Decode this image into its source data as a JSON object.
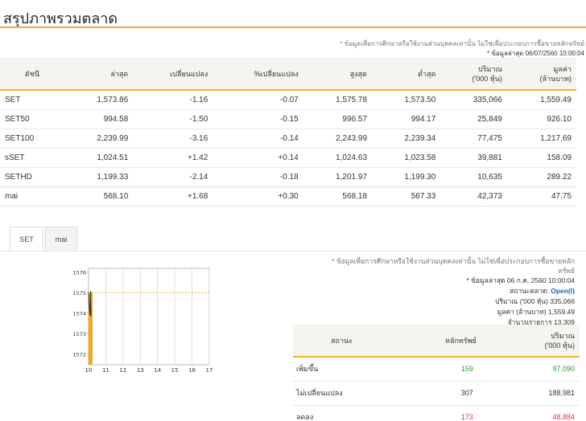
{
  "page_title": "สรุปภาพรวมตลาด",
  "top_notes": {
    "disclaimer": "* ข้อมูลเพื่อการศึกษาหรือใช้งานส่วนบุคคลเท่านั้น ไม่ใช่เพื่อประกอบการซื้อขายหลักทรัพย์",
    "updated": "* ข้อมูลล่าสุด 06/07/2560 10:00:04"
  },
  "index_table": {
    "headers": [
      "ดัชนี",
      "ล่าสุด",
      "เปลี่ยนแปลง",
      "%เปลี่ยนแปลง",
      "สูงสุด",
      "ต่ำสุด",
      "ปริมาณ\n('000 หุ้น)",
      "มูลค่า\n(ล้านบาท)"
    ],
    "rows": [
      {
        "name": "SET",
        "last": "1,573.86",
        "change": "-1.16",
        "pct": "-0.07",
        "high": "1,575.78",
        "low": "1,573.50",
        "volume": "335,066",
        "value": "1,559.49"
      },
      {
        "name": "SET50",
        "last": "994.58",
        "change": "-1.50",
        "pct": "-0.15",
        "high": "996.57",
        "low": "994.17",
        "volume": "25,849",
        "value": "926.10"
      },
      {
        "name": "SET100",
        "last": "2,239.99",
        "change": "-3.16",
        "pct": "-0.14",
        "high": "2,243.99",
        "low": "2,239.34",
        "volume": "77,475",
        "value": "1,217.69"
      },
      {
        "name": "sSET",
        "last": "1,024.51",
        "change": "+1.42",
        "pct": "+0.14",
        "high": "1,024.63",
        "low": "1,023.58",
        "volume": "39,881",
        "value": "158.09"
      },
      {
        "name": "SETHD",
        "last": "1,199.33",
        "change": "-2.14",
        "pct": "-0.18",
        "high": "1,201.97",
        "low": "1,199.30",
        "volume": "10,635",
        "value": "289.22"
      },
      {
        "name": "mai",
        "last": "568.10",
        "change": "+1.68",
        "pct": "+0.30",
        "high": "568.18",
        "low": "567.33",
        "volume": "42,373",
        "value": "47.75"
      }
    ]
  },
  "tabs": [
    {
      "label": "SET",
      "active": true
    },
    {
      "label": "mai",
      "active": false
    }
  ],
  "chart_data": {
    "type": "line",
    "x_ticks": [
      "10",
      "11",
      "12",
      "13",
      "14",
      "15",
      "16",
      "17"
    ],
    "y_ticks": [
      1572,
      1573,
      1574,
      1575,
      1576
    ],
    "ylim": [
      1571.5,
      1576.2
    ],
    "reference_level": 1575.02,
    "series": [
      {
        "values": [
          [
            10.0,
            1575.02
          ],
          [
            10.02,
            1574.6
          ],
          [
            10.05,
            1574.2
          ],
          [
            10.08,
            1573.9
          ],
          [
            10.12,
            1575.1
          ],
          [
            10.14,
            1573.86
          ]
        ]
      }
    ],
    "volume_bar": {
      "x": 10.0,
      "color": "#f5a623"
    }
  },
  "chart_colors": {
    "line": "#333333",
    "reference": "#f5a623",
    "grid": "#d8d8d8",
    "frame": "#aaaaaa"
  },
  "right_panel": {
    "disclaimer": "* ข้อมูลเพื่อการศึกษาหรือใช้งานส่วนบุคคลเท่านั้น ไม่ใช่เพื่อประกอบการซื้อขายหลัก",
    "disclaimer2": "ทรัพย์",
    "updated": "* ข้อมูลล่าสุด 06 ก.ค. 2560 10:00:04",
    "status_label": "สถานะตลาด:",
    "status_value": "Open(I)",
    "volume_line": "ปริมาณ ('000 หุ้น)  335,066",
    "value_line": "มูลค่า (ล้านบาท)  1,559.49",
    "trades_line": "จำนวนรายการ  13,309"
  },
  "summary_table": {
    "headers": [
      "สถานะ",
      "หลักทรัพย์",
      "ปริมาณ\n('000 หุ้น)"
    ],
    "rows": [
      {
        "status": "เพิ่มขึ้น",
        "count": "159",
        "volume": "97,090",
        "tone": "pos"
      },
      {
        "status": "ไม่เปลี่ยนแปลง",
        "count": "307",
        "volume": "188,981",
        "tone": "neutral"
      },
      {
        "status": "ลดลง",
        "count": "173",
        "volume": "48,884",
        "tone": "neg"
      }
    ]
  }
}
